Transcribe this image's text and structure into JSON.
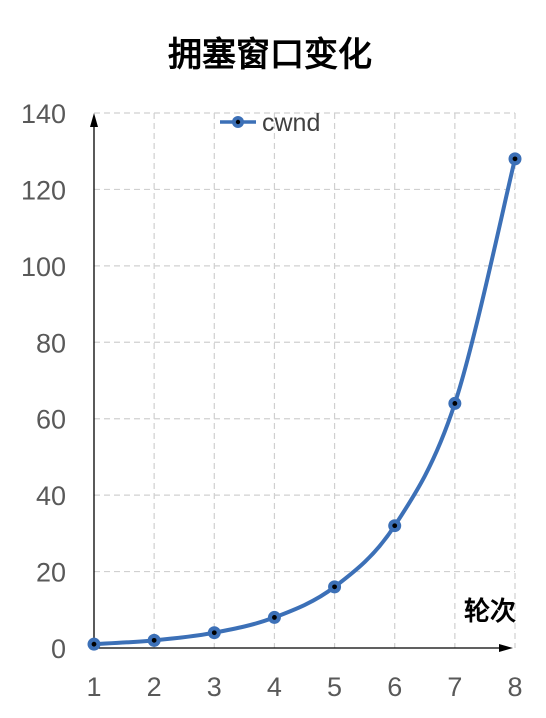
{
  "chart_data": {
    "type": "line",
    "title": "拥塞窗口变化",
    "xlabel": "轮次",
    "ylabel": "",
    "x": [
      1,
      2,
      3,
      4,
      5,
      6,
      7,
      8
    ],
    "series": [
      {
        "name": "cwnd",
        "values": [
          1,
          2,
          4,
          8,
          16,
          32,
          64,
          128
        ]
      }
    ],
    "xlim": [
      1,
      8
    ],
    "ylim": [
      0,
      140
    ],
    "yticks": [
      0,
      20,
      40,
      60,
      80,
      100,
      120,
      140
    ],
    "grid": true,
    "legend": "top-center",
    "colors": {
      "line": "#3C70B7",
      "marker_center": "#000000",
      "grid": "#D0D0D0",
      "axis": "#000000"
    }
  }
}
